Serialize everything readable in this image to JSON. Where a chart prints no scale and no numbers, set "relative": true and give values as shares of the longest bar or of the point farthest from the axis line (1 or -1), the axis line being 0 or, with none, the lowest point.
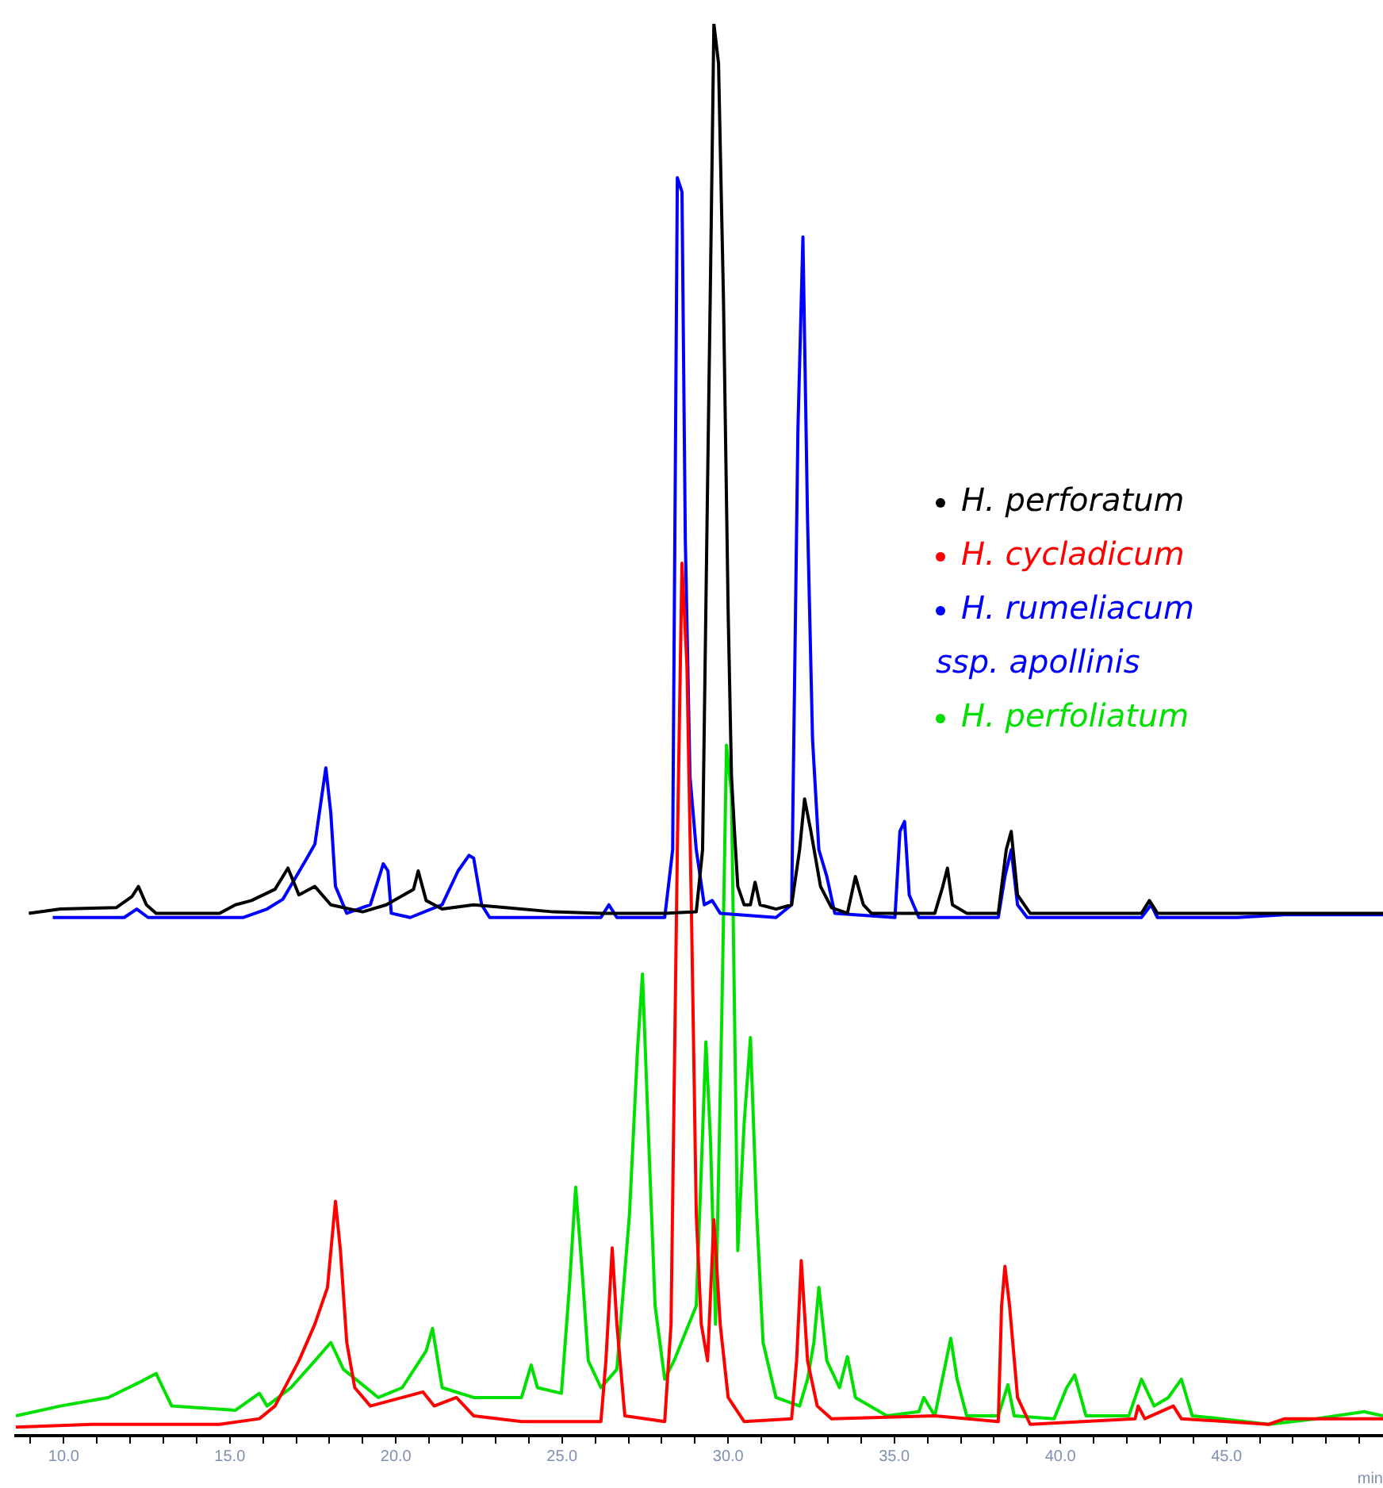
{
  "chart_data": {
    "type": "line",
    "relative": true,
    "xlabel": "min",
    "xlim": [
      8.56,
      49.71
    ],
    "xticks": [
      {
        "value": 9,
        "label": null
      },
      {
        "value": 10,
        "label": "10.0"
      },
      {
        "value": 11,
        "label": null
      },
      {
        "value": 12,
        "label": null
      },
      {
        "value": 13,
        "label": null
      },
      {
        "value": 14,
        "label": null
      },
      {
        "value": 15,
        "label": "15.0"
      },
      {
        "value": 16,
        "label": null
      },
      {
        "value": 17,
        "label": null
      },
      {
        "value": 18,
        "label": null
      },
      {
        "value": 19,
        "label": null
      },
      {
        "value": 20,
        "label": "20.0"
      },
      {
        "value": 21,
        "label": null
      },
      {
        "value": 22,
        "label": null
      },
      {
        "value": 23,
        "label": null
      },
      {
        "value": 24,
        "label": null
      },
      {
        "value": 25,
        "label": "25.0"
      },
      {
        "value": 26,
        "label": null
      },
      {
        "value": 27,
        "label": null
      },
      {
        "value": 28,
        "label": null
      },
      {
        "value": 29,
        "label": null
      },
      {
        "value": 30,
        "label": "30.0"
      },
      {
        "value": 31,
        "label": null
      },
      {
        "value": 32,
        "label": null
      },
      {
        "value": 33,
        "label": null
      },
      {
        "value": 34,
        "label": null
      },
      {
        "value": 35,
        "label": "35.0"
      },
      {
        "value": 36,
        "label": null
      },
      {
        "value": 37,
        "label": null
      },
      {
        "value": 38,
        "label": null
      },
      {
        "value": 39,
        "label": null
      },
      {
        "value": 40,
        "label": "40.0"
      },
      {
        "value": 41,
        "label": null
      },
      {
        "value": 42,
        "label": null
      },
      {
        "value": 43,
        "label": null
      },
      {
        "value": 44,
        "label": null
      },
      {
        "value": 45,
        "label": "45.0"
      },
      {
        "value": 46,
        "label": null
      },
      {
        "value": 47,
        "label": null
      },
      {
        "value": 48,
        "label": null
      },
      {
        "value": 49,
        "label": null
      }
    ],
    "grid": false,
    "legend": "right",
    "marker": "none",
    "line_style": "solid",
    "series": [
      {
        "name": "H. perforatum",
        "color": "#000000",
        "x": [
          8.95,
          9.9,
          11.58,
          12.06,
          12.25,
          12.49,
          12.78,
          14.69,
          15.17,
          15.65,
          16.36,
          16.75,
          17.08,
          17.56,
          18.04,
          19.0,
          19.71,
          20.53,
          20.67,
          20.91,
          21.39,
          22.34,
          23.3,
          24.74,
          26.17,
          28.09,
          29.04,
          29.23,
          29.38,
          29.47,
          29.57,
          29.71,
          29.86,
          30.0,
          30.1,
          30.19,
          30.29,
          30.48,
          30.67,
          30.81,
          30.96,
          31.44,
          31.91,
          32.15,
          32.3,
          32.49,
          32.78,
          33.11,
          33.59,
          33.83,
          34.07,
          34.31,
          36.22,
          36.46,
          36.6,
          36.75,
          37.18,
          38.13,
          38.37,
          38.52,
          38.71,
          39.09,
          42.44,
          42.68,
          42.92,
          45.31,
          48.66,
          49.71
        ],
        "values": [
          0.37,
          0.373,
          0.374,
          0.382,
          0.389,
          0.376,
          0.37,
          0.37,
          0.376,
          0.379,
          0.387,
          0.402,
          0.383,
          0.389,
          0.376,
          0.371,
          0.376,
          0.387,
          0.4,
          0.379,
          0.373,
          0.376,
          0.374,
          0.371,
          0.37,
          0.37,
          0.371,
          0.415,
          0.674,
          0.823,
          1,
          0.972,
          0.803,
          0.583,
          0.467,
          0.428,
          0.389,
          0.376,
          0.376,
          0.392,
          0.376,
          0.373,
          0.376,
          0.415,
          0.451,
          0.428,
          0.389,
          0.374,
          0.37,
          0.396,
          0.376,
          0.37,
          0.37,
          0.389,
          0.402,
          0.376,
          0.37,
          0.37,
          0.415,
          0.428,
          0.383,
          0.37,
          0.37,
          0.379,
          0.37,
          0.37,
          0.37,
          0.37
        ]
      },
      {
        "name": "H. cycladicum",
        "color": "#ff0000",
        "x": [
          8.56,
          10.86,
          14.69,
          15.89,
          16.36,
          17.08,
          17.56,
          17.94,
          18.18,
          18.33,
          18.52,
          18.76,
          19.23,
          20.19,
          20.81,
          21.15,
          21.82,
          22.34,
          23.78,
          26.17,
          26.32,
          26.51,
          26.65,
          26.89,
          28.09,
          28.28,
          28.47,
          28.61,
          28.76,
          28.9,
          29.04,
          29.19,
          29.38,
          29.57,
          29.76,
          30.0,
          30.48,
          31.91,
          32.06,
          32.2,
          32.39,
          32.68,
          33.11,
          36.22,
          38.13,
          38.23,
          38.33,
          38.47,
          38.71,
          39.09,
          42.25,
          42.34,
          42.54,
          43.4,
          43.64,
          46.27,
          46.75,
          49.71
        ],
        "values": [
          0.006,
          0.008,
          0.008,
          0.012,
          0.021,
          0.053,
          0.079,
          0.105,
          0.166,
          0.131,
          0.066,
          0.034,
          0.021,
          0.027,
          0.031,
          0.021,
          0.027,
          0.014,
          0.01,
          0.01,
          0.053,
          0.133,
          0.079,
          0.014,
          0.01,
          0.079,
          0.415,
          0.618,
          0.545,
          0.364,
          0.157,
          0.079,
          0.053,
          0.153,
          0.079,
          0.027,
          0.01,
          0.012,
          0.053,
          0.124,
          0.053,
          0.021,
          0.012,
          0.014,
          0.01,
          0.092,
          0.12,
          0.092,
          0.027,
          0.008,
          0.012,
          0.021,
          0.012,
          0.021,
          0.012,
          0.008,
          0.012,
          0.012
        ]
      },
      {
        "name": "H. rumeliacum ssp. apollinis",
        "color": "#0000ff",
        "x": [
          9.67,
          11.82,
          12.2,
          12.54,
          14.21,
          15.41,
          16.12,
          16.6,
          17.32,
          17.56,
          17.89,
          18.04,
          18.18,
          18.52,
          19.23,
          19.62,
          19.76,
          19.86,
          20.43,
          21.39,
          21.87,
          22.2,
          22.34,
          22.58,
          22.82,
          26.17,
          26.41,
          26.65,
          28.09,
          28.33,
          28.47,
          28.61,
          28.71,
          28.85,
          29.04,
          29.28,
          29.52,
          29.76,
          31.44,
          31.91,
          32.1,
          32.25,
          32.39,
          32.54,
          32.73,
          32.97,
          33.21,
          35.02,
          35.17,
          35.31,
          35.45,
          35.74,
          38.13,
          38.33,
          38.52,
          38.71,
          39.0,
          42.44,
          42.73,
          42.92,
          45.31,
          46.75,
          49.71
        ],
        "values": [
          0.367,
          0.367,
          0.373,
          0.367,
          0.367,
          0.367,
          0.373,
          0.38,
          0.409,
          0.419,
          0.473,
          0.441,
          0.389,
          0.37,
          0.376,
          0.405,
          0.4,
          0.37,
          0.367,
          0.376,
          0.4,
          0.411,
          0.409,
          0.376,
          0.367,
          0.367,
          0.376,
          0.367,
          0.367,
          0.415,
          0.891,
          0.881,
          0.635,
          0.467,
          0.415,
          0.376,
          0.379,
          0.37,
          0.367,
          0.376,
          0.713,
          0.849,
          0.648,
          0.493,
          0.415,
          0.396,
          0.37,
          0.367,
          0.428,
          0.435,
          0.383,
          0.367,
          0.367,
          0.396,
          0.415,
          0.376,
          0.367,
          0.367,
          0.376,
          0.367,
          0.367,
          0.369,
          0.369
        ]
      },
      {
        "name": "H. perfoliatum",
        "color": "#00e000",
        "x": [
          8.56,
          9.9,
          11.34,
          12.3,
          12.78,
          13.25,
          15.17,
          15.89,
          16.12,
          16.84,
          17.56,
          18.04,
          18.42,
          19.47,
          20.19,
          20.91,
          21.1,
          21.39,
          22.34,
          23.78,
          24.07,
          24.26,
          24.98,
          25.22,
          25.41,
          25.6,
          25.79,
          26.17,
          26.65,
          27.03,
          27.27,
          27.42,
          27.61,
          27.8,
          28.09,
          28.37,
          29.04,
          29.33,
          29.47,
          29.62,
          29.81,
          29.95,
          30.1,
          30.29,
          30.48,
          30.67,
          30.86,
          31.05,
          31.44,
          32.15,
          32.39,
          32.58,
          32.73,
          32.97,
          33.35,
          33.59,
          33.83,
          34.78,
          35.74,
          35.89,
          36.22,
          36.56,
          36.7,
          36.89,
          37.18,
          38.13,
          38.42,
          38.61,
          39.81,
          40.19,
          40.43,
          40.77,
          42.06,
          42.44,
          42.82,
          43.25,
          43.64,
          43.97,
          44.83,
          46.27,
          47.7,
          49.14,
          49.71
        ],
        "values": [
          0.014,
          0.021,
          0.027,
          0.038,
          0.044,
          0.021,
          0.018,
          0.03,
          0.021,
          0.034,
          0.053,
          0.066,
          0.047,
          0.027,
          0.034,
          0.06,
          0.076,
          0.034,
          0.027,
          0.027,
          0.05,
          0.034,
          0.03,
          0.105,
          0.176,
          0.118,
          0.053,
          0.034,
          0.047,
          0.157,
          0.273,
          0.327,
          0.208,
          0.092,
          0.04,
          0.053,
          0.092,
          0.279,
          0.208,
          0.079,
          0.3,
          0.489,
          0.454,
          0.131,
          0.221,
          0.282,
          0.157,
          0.066,
          0.027,
          0.021,
          0.04,
          0.066,
          0.105,
          0.053,
          0.034,
          0.056,
          0.027,
          0.014,
          0.017,
          0.027,
          0.014,
          0.053,
          0.069,
          0.04,
          0.014,
          0.014,
          0.036,
          0.014,
          0.012,
          0.034,
          0.043,
          0.014,
          0.014,
          0.04,
          0.021,
          0.027,
          0.04,
          0.014,
          0.012,
          0.008,
          0.012,
          0.017,
          0.014
        ]
      }
    ]
  }
}
